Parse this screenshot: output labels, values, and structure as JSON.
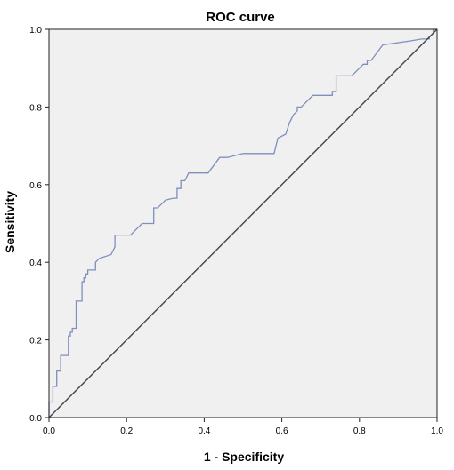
{
  "chart_data": {
    "type": "line",
    "title": "ROC curve",
    "xlabel": "1 - Specificity",
    "ylabel": "Sensitivity",
    "xlim": [
      0,
      1
    ],
    "ylim": [
      0,
      1
    ],
    "xticks": [
      "0.0",
      "0.2",
      "0.4",
      "0.6",
      "0.8",
      "1.0"
    ],
    "yticks": [
      "0.0",
      "0.2",
      "0.4",
      "0.6",
      "0.8",
      "1.0"
    ],
    "grid": false,
    "plot_background": "#f0f0f0",
    "series": [
      {
        "color": "#7f8fbe",
        "step": true,
        "points": [
          [
            0.0,
            0.0
          ],
          [
            0.0,
            0.04
          ],
          [
            0.01,
            0.04
          ],
          [
            0.01,
            0.08
          ],
          [
            0.02,
            0.08
          ],
          [
            0.02,
            0.12
          ],
          [
            0.03,
            0.12
          ],
          [
            0.03,
            0.16
          ],
          [
            0.05,
            0.16
          ],
          [
            0.05,
            0.21
          ],
          [
            0.055,
            0.21
          ],
          [
            0.055,
            0.22
          ],
          [
            0.06,
            0.22
          ],
          [
            0.06,
            0.23
          ],
          [
            0.07,
            0.23
          ],
          [
            0.07,
            0.3
          ],
          [
            0.085,
            0.3
          ],
          [
            0.085,
            0.35
          ],
          [
            0.09,
            0.35
          ],
          [
            0.09,
            0.36
          ],
          [
            0.095,
            0.36
          ],
          [
            0.095,
            0.37
          ],
          [
            0.1,
            0.37
          ],
          [
            0.1,
            0.38
          ],
          [
            0.12,
            0.38
          ],
          [
            0.12,
            0.4
          ],
          [
            0.13,
            0.41
          ],
          [
            0.16,
            0.42
          ],
          [
            0.17,
            0.44
          ],
          [
            0.17,
            0.47
          ],
          [
            0.21,
            0.47
          ],
          [
            0.24,
            0.5
          ],
          [
            0.27,
            0.5
          ],
          [
            0.27,
            0.54
          ],
          [
            0.28,
            0.54
          ],
          [
            0.3,
            0.56
          ],
          [
            0.32,
            0.565
          ],
          [
            0.33,
            0.565
          ],
          [
            0.33,
            0.59
          ],
          [
            0.34,
            0.59
          ],
          [
            0.34,
            0.61
          ],
          [
            0.35,
            0.61
          ],
          [
            0.36,
            0.63
          ],
          [
            0.41,
            0.63
          ],
          [
            0.44,
            0.67
          ],
          [
            0.46,
            0.67
          ],
          [
            0.5,
            0.68
          ],
          [
            0.58,
            0.68
          ],
          [
            0.59,
            0.72
          ],
          [
            0.61,
            0.73
          ],
          [
            0.62,
            0.76
          ],
          [
            0.63,
            0.78
          ],
          [
            0.64,
            0.79
          ],
          [
            0.64,
            0.8
          ],
          [
            0.65,
            0.8
          ],
          [
            0.67,
            0.82
          ],
          [
            0.68,
            0.83
          ],
          [
            0.73,
            0.83
          ],
          [
            0.73,
            0.84
          ],
          [
            0.74,
            0.84
          ],
          [
            0.74,
            0.88
          ],
          [
            0.78,
            0.88
          ],
          [
            0.81,
            0.91
          ],
          [
            0.82,
            0.91
          ],
          [
            0.82,
            0.92
          ],
          [
            0.83,
            0.92
          ],
          [
            0.86,
            0.96
          ],
          [
            0.93,
            0.97
          ],
          [
            0.96,
            0.975
          ],
          [
            0.98,
            0.975
          ],
          [
            0.98,
            0.98
          ],
          [
            0.99,
            0.99
          ],
          [
            0.99,
            1.0
          ],
          [
            1.0,
            1.0
          ]
        ]
      },
      {
        "color": "#444444",
        "step": false,
        "points": [
          [
            0,
            0
          ],
          [
            1,
            1
          ]
        ]
      }
    ]
  }
}
